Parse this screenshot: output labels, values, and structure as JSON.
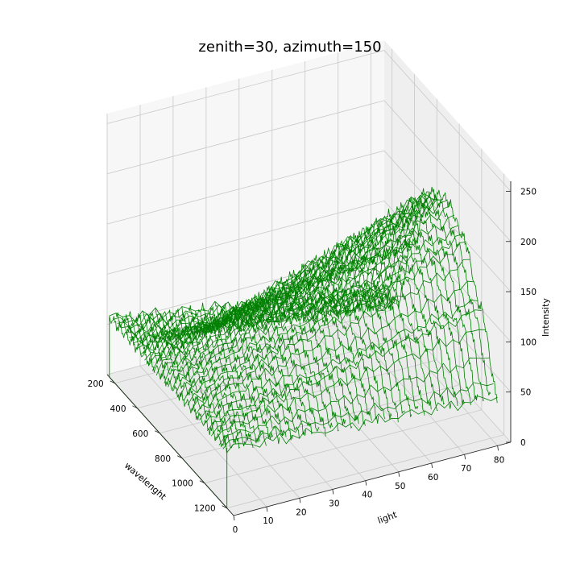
{
  "chart_data": {
    "type": "3d-wireframe",
    "title": "zenith=30, azimuth=150",
    "xlabel": "wavelenght",
    "ylabel": "light",
    "zlabel": "Intensity",
    "x_ticks": [
      200,
      400,
      600,
      800,
      1000,
      1200
    ],
    "y_ticks": [
      0,
      10,
      20,
      30,
      40,
      50,
      60,
      70,
      80
    ],
    "z_ticks": [
      0,
      50,
      100,
      150,
      200,
      250
    ],
    "xlim": [
      130,
      1260
    ],
    "ylim": [
      0,
      84
    ],
    "zlim": [
      0,
      260
    ],
    "view": {
      "elevation": 30,
      "azimuth": 150
    },
    "grid": true,
    "line_color": "#008000",
    "series_profile": {
      "x": [
        150,
        300,
        450,
        600,
        750,
        900,
        1050,
        1200
      ],
      "intensity_at_light_0": [
        60,
        60,
        60,
        60,
        60,
        60,
        60,
        60
      ],
      "intensity_at_light_82": [
        20,
        20,
        100,
        170,
        180,
        160,
        110,
        40
      ]
    }
  }
}
